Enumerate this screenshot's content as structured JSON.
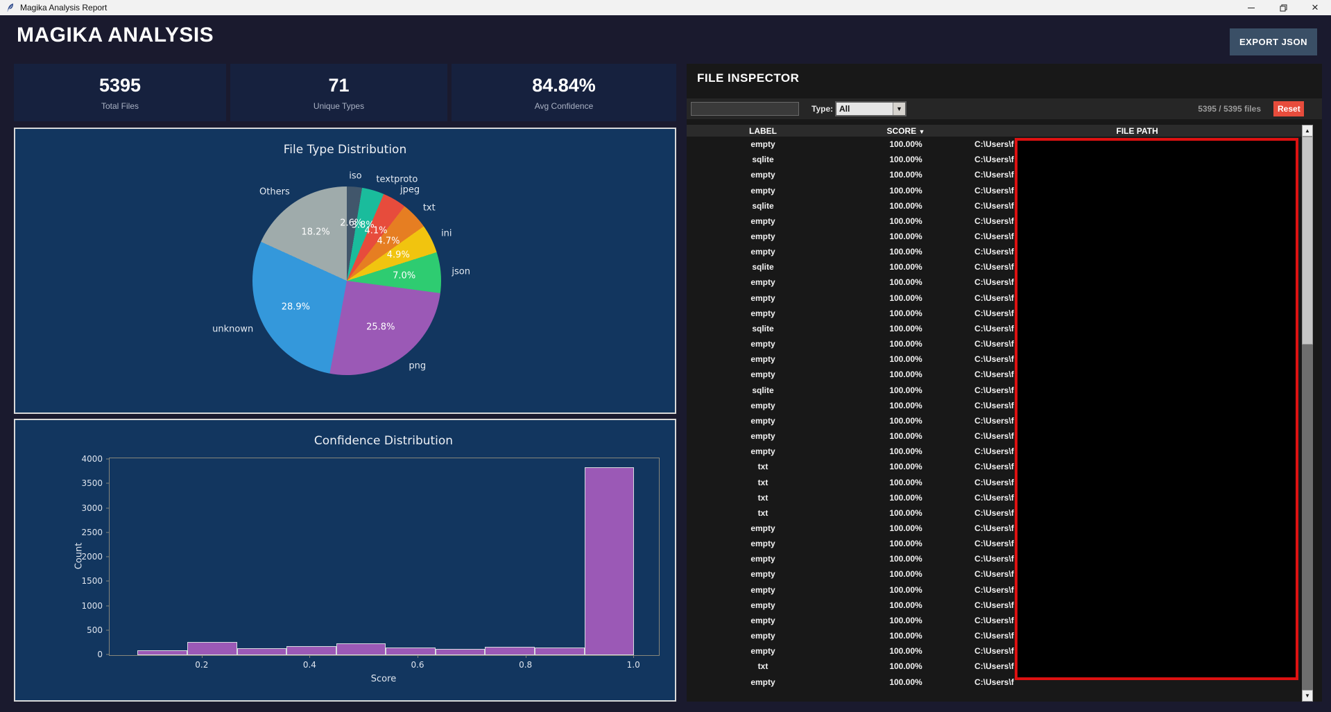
{
  "window": {
    "title": "Magika Analysis Report"
  },
  "icons": {
    "minimize": "—",
    "close": "×",
    "sort_desc": "▼",
    "combo_arrow": "▼",
    "scroll_up": "▲",
    "scroll_down": "▼"
  },
  "header": {
    "title": "MAGIKA ANALYSIS",
    "export_label": "EXPORT JSON"
  },
  "stats": [
    {
      "value": "5395",
      "label": "Total Files"
    },
    {
      "value": "71",
      "label": "Unique Types"
    },
    {
      "value": "84.84%",
      "label": "Avg Confidence"
    }
  ],
  "inspector": {
    "title": "FILE INSPECTOR",
    "search_value": "",
    "type_label": "Type:",
    "type_value": "All",
    "files_count": "5395 / 5395 files",
    "reset_label": "Reset",
    "columns": {
      "label": "LABEL",
      "score": "SCORE",
      "path": "FILE PATH"
    },
    "rows": [
      [
        "empty",
        "100.00%",
        "C:\\Users\\f"
      ],
      [
        "sqlite",
        "100.00%",
        "C:\\Users\\f"
      ],
      [
        "empty",
        "100.00%",
        "C:\\Users\\f"
      ],
      [
        "empty",
        "100.00%",
        "C:\\Users\\f"
      ],
      [
        "sqlite",
        "100.00%",
        "C:\\Users\\f"
      ],
      [
        "empty",
        "100.00%",
        "C:\\Users\\f"
      ],
      [
        "empty",
        "100.00%",
        "C:\\Users\\f"
      ],
      [
        "empty",
        "100.00%",
        "C:\\Users\\f"
      ],
      [
        "sqlite",
        "100.00%",
        "C:\\Users\\f"
      ],
      [
        "empty",
        "100.00%",
        "C:\\Users\\f"
      ],
      [
        "empty",
        "100.00%",
        "C:\\Users\\f"
      ],
      [
        "empty",
        "100.00%",
        "C:\\Users\\f"
      ],
      [
        "sqlite",
        "100.00%",
        "C:\\Users\\f"
      ],
      [
        "empty",
        "100.00%",
        "C:\\Users\\f"
      ],
      [
        "empty",
        "100.00%",
        "C:\\Users\\f"
      ],
      [
        "empty",
        "100.00%",
        "C:\\Users\\f"
      ],
      [
        "sqlite",
        "100.00%",
        "C:\\Users\\f"
      ],
      [
        "empty",
        "100.00%",
        "C:\\Users\\f"
      ],
      [
        "empty",
        "100.00%",
        "C:\\Users\\f"
      ],
      [
        "empty",
        "100.00%",
        "C:\\Users\\f"
      ],
      [
        "empty",
        "100.00%",
        "C:\\Users\\f"
      ],
      [
        "txt",
        "100.00%",
        "C:\\Users\\f"
      ],
      [
        "txt",
        "100.00%",
        "C:\\Users\\f"
      ],
      [
        "txt",
        "100.00%",
        "C:\\Users\\f"
      ],
      [
        "txt",
        "100.00%",
        "C:\\Users\\f"
      ],
      [
        "empty",
        "100.00%",
        "C:\\Users\\f"
      ],
      [
        "empty",
        "100.00%",
        "C:\\Users\\f"
      ],
      [
        "empty",
        "100.00%",
        "C:\\Users\\f"
      ],
      [
        "empty",
        "100.00%",
        "C:\\Users\\f"
      ],
      [
        "empty",
        "100.00%",
        "C:\\Users\\f"
      ],
      [
        "empty",
        "100.00%",
        "C:\\Users\\f"
      ],
      [
        "empty",
        "100.00%",
        "C:\\Users\\f"
      ],
      [
        "empty",
        "100.00%",
        "C:\\Users\\f"
      ],
      [
        "empty",
        "100.00%",
        "C:\\Users\\f"
      ],
      [
        "txt",
        "100.00%",
        "C:\\Users\\f"
      ],
      [
        "empty",
        "100.00%",
        "C:\\Users\\f"
      ]
    ]
  },
  "colors": {
    "accent_red": "#e74c3c",
    "panel_navy": "#12365f",
    "card_navy": "#16213e",
    "background": "#1a1a2e",
    "redaction_border": "#dd1111"
  },
  "chart_data": [
    {
      "type": "pie",
      "title": "File Type Distribution",
      "labels": [
        "iso",
        "textproto",
        "jpeg",
        "txt",
        "ini",
        "json",
        "png",
        "unknown",
        "Others"
      ],
      "values": [
        2.6,
        3.8,
        4.1,
        4.7,
        4.9,
        7.0,
        25.8,
        28.9,
        18.2
      ],
      "pct_labels": [
        "2.6%",
        "3.8%",
        "4.1%",
        "4.7%",
        "4.9%",
        "7.0%",
        "25.8%",
        "28.9%",
        "18.2%"
      ],
      "colors": [
        "#41566b",
        "#1abc9c",
        "#e74c3c",
        "#e67e22",
        "#f1c40f",
        "#2ecc71",
        "#9b59b6",
        "#3498db",
        "#9fabab"
      ],
      "start_angle": "top",
      "direction": "clockwise",
      "legend": "none"
    },
    {
      "type": "bar",
      "title": "Confidence Distribution",
      "xlabel": "Score",
      "ylabel": "Count",
      "bins_start": 0.08,
      "bin_width": 0.092,
      "values": [
        95,
        265,
        140,
        185,
        235,
        160,
        135,
        170,
        160,
        3850
      ],
      "bar_color": "#9b59b6",
      "bar_edge_color": "#d7dbe0",
      "xticks": [
        0.2,
        0.4,
        0.6,
        0.8,
        1.0
      ],
      "yticks": [
        0,
        500,
        1000,
        1500,
        2000,
        2500,
        3000,
        3500,
        4000
      ],
      "xlim": [
        0.028,
        1.046
      ],
      "ylim": [
        0,
        4030
      ],
      "grid": "off"
    }
  ]
}
